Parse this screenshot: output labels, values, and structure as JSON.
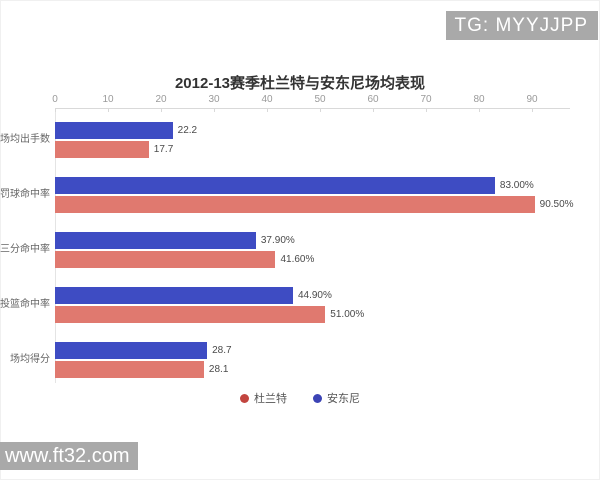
{
  "badge": {
    "text": "TG: MYYJJPP"
  },
  "watermark": {
    "text": "www.ft32.com"
  },
  "chart_data": {
    "type": "bar",
    "orientation": "horizontal",
    "title": "2012-13赛季杜兰特与安东尼场均表现",
    "xlabel": "",
    "ylabel": "",
    "xlim": [
      0,
      90
    ],
    "xticks": [
      0,
      10,
      20,
      30,
      40,
      50,
      60,
      70,
      80,
      90
    ],
    "axis_position": "top",
    "grid": false,
    "legend_position": "bottom",
    "categories": [
      "场均出手数",
      "罚球命中率",
      "三分命中率",
      "投篮命中率",
      "场均得分"
    ],
    "series": [
      {
        "name": "安东尼",
        "color": "#3e4cc3",
        "values": [
          22.2,
          83.0,
          37.9,
          44.9,
          28.7
        ],
        "value_labels": [
          "22.2",
          "83.00%",
          "37.90%",
          "44.90%",
          "28.7"
        ]
      },
      {
        "name": "杜兰特",
        "color": "#e0796f",
        "values": [
          17.7,
          90.5,
          41.6,
          51.0,
          28.1
        ],
        "value_labels": [
          "17.7",
          "90.50%",
          "41.60%",
          "51.00%",
          "28.1"
        ]
      }
    ],
    "legend": [
      {
        "label": "杜兰特",
        "color": "#c2453f"
      },
      {
        "label": "安东尼",
        "color": "#3c44b5"
      }
    ]
  }
}
